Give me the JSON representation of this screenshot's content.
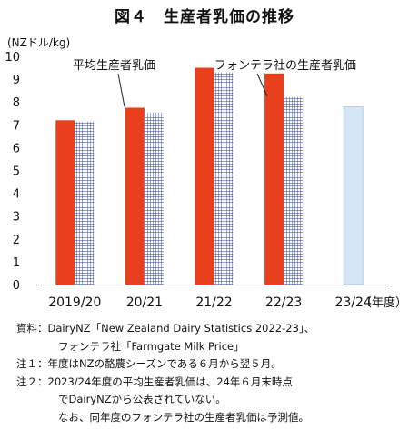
{
  "title": "図４　生産者乳価の推移",
  "unit_label": "(NZドル/kg)",
  "chart_data": {
    "type": "bar",
    "title": "図４　生産者乳価の推移",
    "ylabel": "(NZドル/kg)",
    "xlabel": "（年度）",
    "ylim": [
      0,
      10
    ],
    "yticks": [
      0,
      1,
      2,
      3,
      4,
      5,
      6,
      7,
      8,
      9,
      10
    ],
    "categories": [
      "2019/20",
      "20/21",
      "21/22",
      "22/23",
      "23/24"
    ],
    "series": [
      {
        "name": "平均生産者乳価",
        "values": [
          7.2,
          7.75,
          9.5,
          9.25,
          null
        ],
        "color": "#e8401c"
      },
      {
        "name": "フォンテラ社の生産者乳価",
        "values": [
          7.14,
          7.54,
          9.3,
          8.22,
          7.78
        ],
        "color": "#2a3d99",
        "pattern": "grid",
        "forecast_color": "#d6e6f5"
      }
    ],
    "annotations": [
      "平均生産者乳価",
      "フォンテラ社の生産者乳価"
    ],
    "grid": false
  },
  "notes": [
    {
      "label": "資料：",
      "lines": [
        "DairyNZ「New Zealand Dairy Statistics 2022-23」、",
        "フォンテラ社「Farmgate Milk Price」"
      ]
    },
    {
      "label": "注１：",
      "lines": [
        "年度はNZの酪農シーズンである６月から翌５月。"
      ]
    },
    {
      "label": "注２：",
      "lines": [
        "2023/24年度の平均生産者乳価は、24年６月末時点",
        "でDairyNZから公表されていない。",
        "なお、同年度のフォンテラ社の生産者乳価は予測値。"
      ]
    }
  ]
}
